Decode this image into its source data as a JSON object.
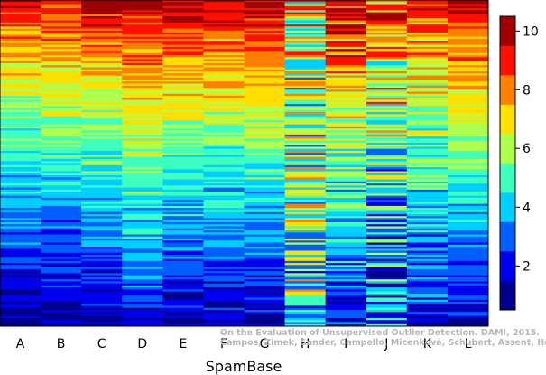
{
  "chart_data": {
    "type": "heatmap",
    "title": "",
    "xlabel": "SpamBase",
    "ylabel": "",
    "columns": [
      "A",
      "B",
      "C",
      "D",
      "E",
      "F",
      "G",
      "H",
      "I",
      "J",
      "K",
      "L"
    ],
    "n_rows": 160,
    "value_range": [
      0.5,
      10.5
    ],
    "colorbar": {
      "ticks": [
        2,
        4,
        6,
        8,
        10
      ],
      "colors": [
        "#00008f",
        "#0000ef",
        "#005fff",
        "#00cfff",
        "#3fffbf",
        "#afff4f",
        "#ffdf00",
        "#ff7f00",
        "#ff0f00",
        "#9f0000"
      ]
    },
    "column_profile": {
      "description_values_top_to_bottom": "per-column mean value at top and at bottom of sorted rows",
      "top": [
        9.2,
        9.4,
        9.8,
        10.1,
        9.9,
        9.9,
        10.1,
        6.5,
        9.9,
        8.5,
        9.0,
        9.8
      ],
      "bottom": [
        1.0,
        1.0,
        1.3,
        1.8,
        1.5,
        1.3,
        1.3,
        5.0,
        2.0,
        2.5,
        2.0,
        1.6
      ],
      "noise": [
        1.0,
        1.0,
        1.0,
        1.0,
        1.0,
        1.0,
        1.0,
        2.8,
        1.6,
        2.6,
        1.4,
        1.0
      ]
    }
  },
  "watermark": {
    "line1": "On the Evaluation of Unsupervised Outlier Detection. DAMI, 2015.",
    "line2": "Campos, Zimek, Sander, Campello, Micenková, Schubert, Assent, Houle"
  }
}
